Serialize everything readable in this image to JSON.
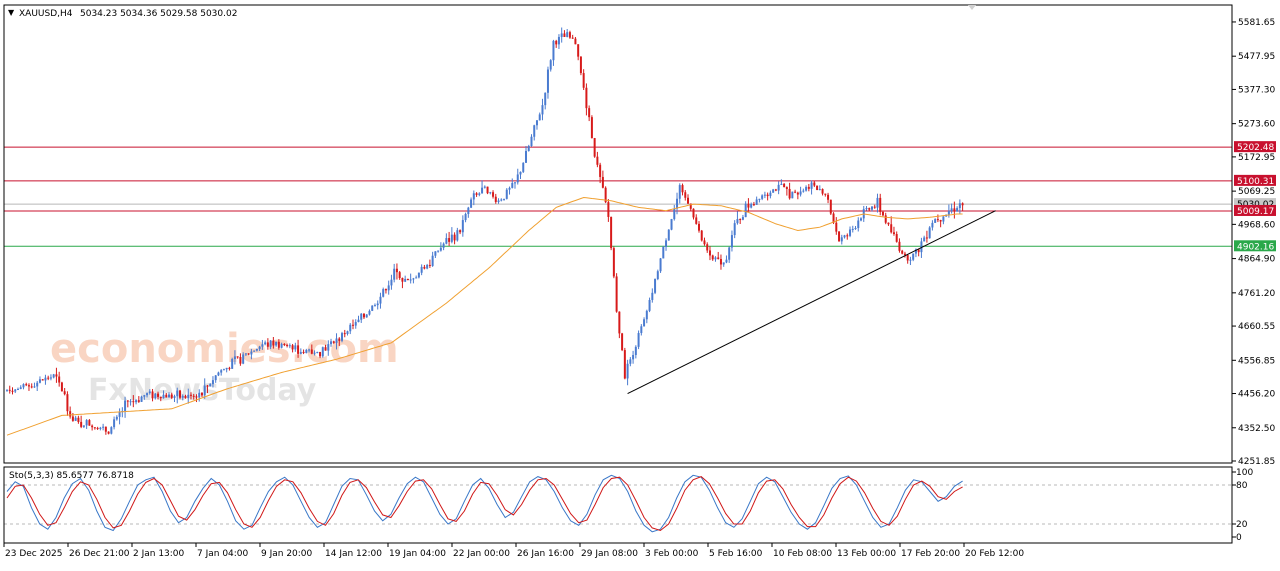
{
  "chart_data": [
    {
      "type": "candlestick",
      "symbol": "XAUUSD,H4",
      "ohlc_label": "5034.23 5034.36 5029.58 5030.02",
      "ylim": [
        4251.85,
        5633
      ],
      "y_ticks": [
        "5581.65",
        "5477.95",
        "5377.30",
        "5273.60",
        "5172.95",
        "5069.25",
        "4968.60",
        "4864.90",
        "4761.20",
        "4660.55",
        "4556.85",
        "4456.20",
        "4352.50",
        "4251.85"
      ],
      "y_tick_values": [
        5581.65,
        5477.95,
        5377.3,
        5273.6,
        5172.95,
        5069.25,
        4968.6,
        4864.9,
        4761.2,
        4660.55,
        4556.85,
        4456.2,
        4352.5,
        4251.85
      ],
      "x_ticks": [
        "23 Dec 2025",
        "26 Dec 21:00",
        "2 Jan 13:00",
        "7 Jan 04:00",
        "9 Jan 20:00",
        "14 Jan 12:00",
        "19 Jan 04:00",
        "22 Jan 00:00",
        "26 Jan 16:00",
        "29 Jan 08:00",
        "3 Feb 00:00",
        "5 Feb 16:00",
        "10 Feb 08:00",
        "13 Feb 00:00",
        "17 Feb 20:00",
        "20 Feb 12:00"
      ],
      "price_anchors": [
        [
          0,
          4465
        ],
        [
          6,
          4470
        ],
        [
          12,
          4490
        ],
        [
          18,
          4510
        ],
        [
          22,
          4450
        ],
        [
          25,
          4370
        ],
        [
          32,
          4360
        ],
        [
          38,
          4340
        ],
        [
          44,
          4420
        ],
        [
          52,
          4455
        ],
        [
          60,
          4450
        ],
        [
          66,
          4445
        ],
        [
          72,
          4460
        ],
        [
          78,
          4520
        ],
        [
          86,
          4560
        ],
        [
          94,
          4605
        ],
        [
          100,
          4610
        ],
        [
          106,
          4590
        ],
        [
          112,
          4580
        ],
        [
          118,
          4600
        ],
        [
          124,
          4640
        ],
        [
          130,
          4680
        ],
        [
          136,
          4740
        ],
        [
          142,
          4820
        ],
        [
          148,
          4790
        ],
        [
          154,
          4850
        ],
        [
          160,
          4910
        ],
        [
          166,
          4950
        ],
        [
          170,
          5040
        ],
        [
          174,
          5070
        ],
        [
          180,
          5040
        ],
        [
          186,
          5090
        ],
        [
          190,
          5180
        ],
        [
          196,
          5330
        ],
        [
          200,
          5520
        ],
        [
          205,
          5540
        ],
        [
          208,
          5520
        ],
        [
          212,
          5330
        ],
        [
          216,
          5140
        ],
        [
          220,
          4990
        ],
        [
          223,
          4720
        ],
        [
          226,
          4510
        ],
        [
          230,
          4610
        ],
        [
          234,
          4700
        ],
        [
          238,
          4830
        ],
        [
          242,
          4960
        ],
        [
          246,
          5070
        ],
        [
          250,
          5020
        ],
        [
          254,
          4920
        ],
        [
          258,
          4860
        ],
        [
          262,
          4850
        ],
        [
          266,
          4960
        ],
        [
          270,
          5020
        ],
        [
          276,
          5060
        ],
        [
          282,
          5080
        ],
        [
          288,
          5060
        ],
        [
          294,
          5090
        ],
        [
          300,
          5040
        ],
        [
          304,
          4920
        ],
        [
          308,
          4940
        ],
        [
          312,
          5000
        ],
        [
          318,
          5030
        ],
        [
          324,
          4930
        ],
        [
          328,
          4870
        ],
        [
          332,
          4880
        ],
        [
          338,
          4980
        ],
        [
          344,
          5010
        ],
        [
          348,
          5030
        ]
      ],
      "candle_count": 349,
      "ma_anchors": [
        [
          0,
          4330
        ],
        [
          20,
          4390
        ],
        [
          40,
          4400
        ],
        [
          60,
          4410
        ],
        [
          80,
          4470
        ],
        [
          100,
          4520
        ],
        [
          120,
          4560
        ],
        [
          140,
          4610
        ],
        [
          160,
          4730
        ],
        [
          176,
          4840
        ],
        [
          190,
          4950
        ],
        [
          200,
          5020
        ],
        [
          210,
          5050
        ],
        [
          220,
          5040
        ],
        [
          230,
          5020
        ],
        [
          240,
          5010
        ],
        [
          250,
          5030
        ],
        [
          260,
          5025
        ],
        [
          270,
          5005
        ],
        [
          280,
          4970
        ],
        [
          288,
          4950
        ],
        [
          296,
          4960
        ],
        [
          304,
          4985
        ],
        [
          312,
          5000
        ],
        [
          320,
          4990
        ],
        [
          328,
          4985
        ],
        [
          336,
          4990
        ],
        [
          346,
          5000
        ]
      ],
      "horizontal_levels": [
        {
          "label": "5202.48",
          "value": 5202.48,
          "color": "#c8102e"
        },
        {
          "label": "5100.31",
          "value": 5100.31,
          "color": "#c8102e"
        },
        {
          "label": "5009.17",
          "value": 5009.17,
          "color": "#c8102e"
        },
        {
          "label": "4902.16",
          "value": 4902.16,
          "color": "#2aa84a"
        }
      ],
      "current_price": {
        "label": "5030.02",
        "value": 5030.02
      },
      "trendline": {
        "from": [
          226,
          4456
        ],
        "to": [
          360,
          5010
        ]
      },
      "colors": {
        "up": "#4a7bd0",
        "down": "#d71a1a",
        "ma": "#f0a030",
        "trend": "#000000"
      }
    },
    {
      "type": "line",
      "title": "Sto(5,3,3) 85.6577 76.8718",
      "ylim": [
        0,
        100
      ],
      "y_ticks": [
        "100",
        "80",
        "20",
        "0"
      ],
      "y_tick_values": [
        100,
        80,
        20,
        0
      ],
      "series": [
        {
          "name": "main",
          "color": "#3a78c8"
        },
        {
          "name": "signal",
          "color": "#d01818"
        }
      ],
      "main_values": [
        70,
        85,
        78,
        45,
        20,
        12,
        30,
        60,
        82,
        90,
        72,
        40,
        15,
        10,
        28,
        55,
        80,
        88,
        92,
        70,
        40,
        22,
        30,
        55,
        75,
        90,
        80,
        55,
        25,
        12,
        18,
        45,
        70,
        85,
        92,
        80,
        55,
        30,
        15,
        22,
        50,
        78,
        90,
        88,
        65,
        40,
        25,
        35,
        60,
        82,
        92,
        85,
        60,
        35,
        20,
        28,
        55,
        80,
        90,
        75,
        50,
        30,
        38,
        62,
        85,
        93,
        88,
        70,
        45,
        25,
        18,
        35,
        65,
        88,
        95,
        90,
        70,
        40,
        18,
        8,
        12,
        30,
        60,
        85,
        95,
        92,
        72,
        45,
        22,
        15,
        28,
        55,
        82,
        92,
        85,
        62,
        38,
        20,
        12,
        22,
        48,
        75,
        90,
        94,
        80,
        55,
        30,
        15,
        20,
        45,
        72,
        88,
        85,
        70,
        55,
        62,
        78,
        86
      ],
      "signal_values": [
        60,
        78,
        80,
        60,
        35,
        18,
        22,
        45,
        70,
        85,
        80,
        58,
        30,
        14,
        18,
        40,
        66,
        84,
        90,
        80,
        56,
        32,
        26,
        42,
        64,
        82,
        84,
        68,
        42,
        20,
        15,
        30,
        56,
        78,
        88,
        85,
        68,
        44,
        24,
        18,
        36,
        64,
        84,
        88,
        76,
        54,
        34,
        30,
        48,
        70,
        86,
        88,
        74,
        50,
        28,
        24,
        40,
        66,
        84,
        82,
        64,
        42,
        34,
        50,
        72,
        88,
        90,
        80,
        58,
        36,
        22,
        26,
        50,
        76,
        90,
        92,
        80,
        56,
        30,
        14,
        10,
        20,
        44,
        72,
        88,
        93,
        82,
        60,
        36,
        20,
        20,
        40,
        68,
        86,
        88,
        74,
        50,
        30,
        16,
        16,
        34,
        60,
        82,
        92,
        86,
        68,
        44,
        24,
        18,
        32,
        58,
        80,
        86,
        78,
        62,
        58,
        70,
        77
      ]
    }
  ],
  "watermark": {
    "brand_top": "economies.com",
    "brand_bottom": "FxNewsToday"
  }
}
